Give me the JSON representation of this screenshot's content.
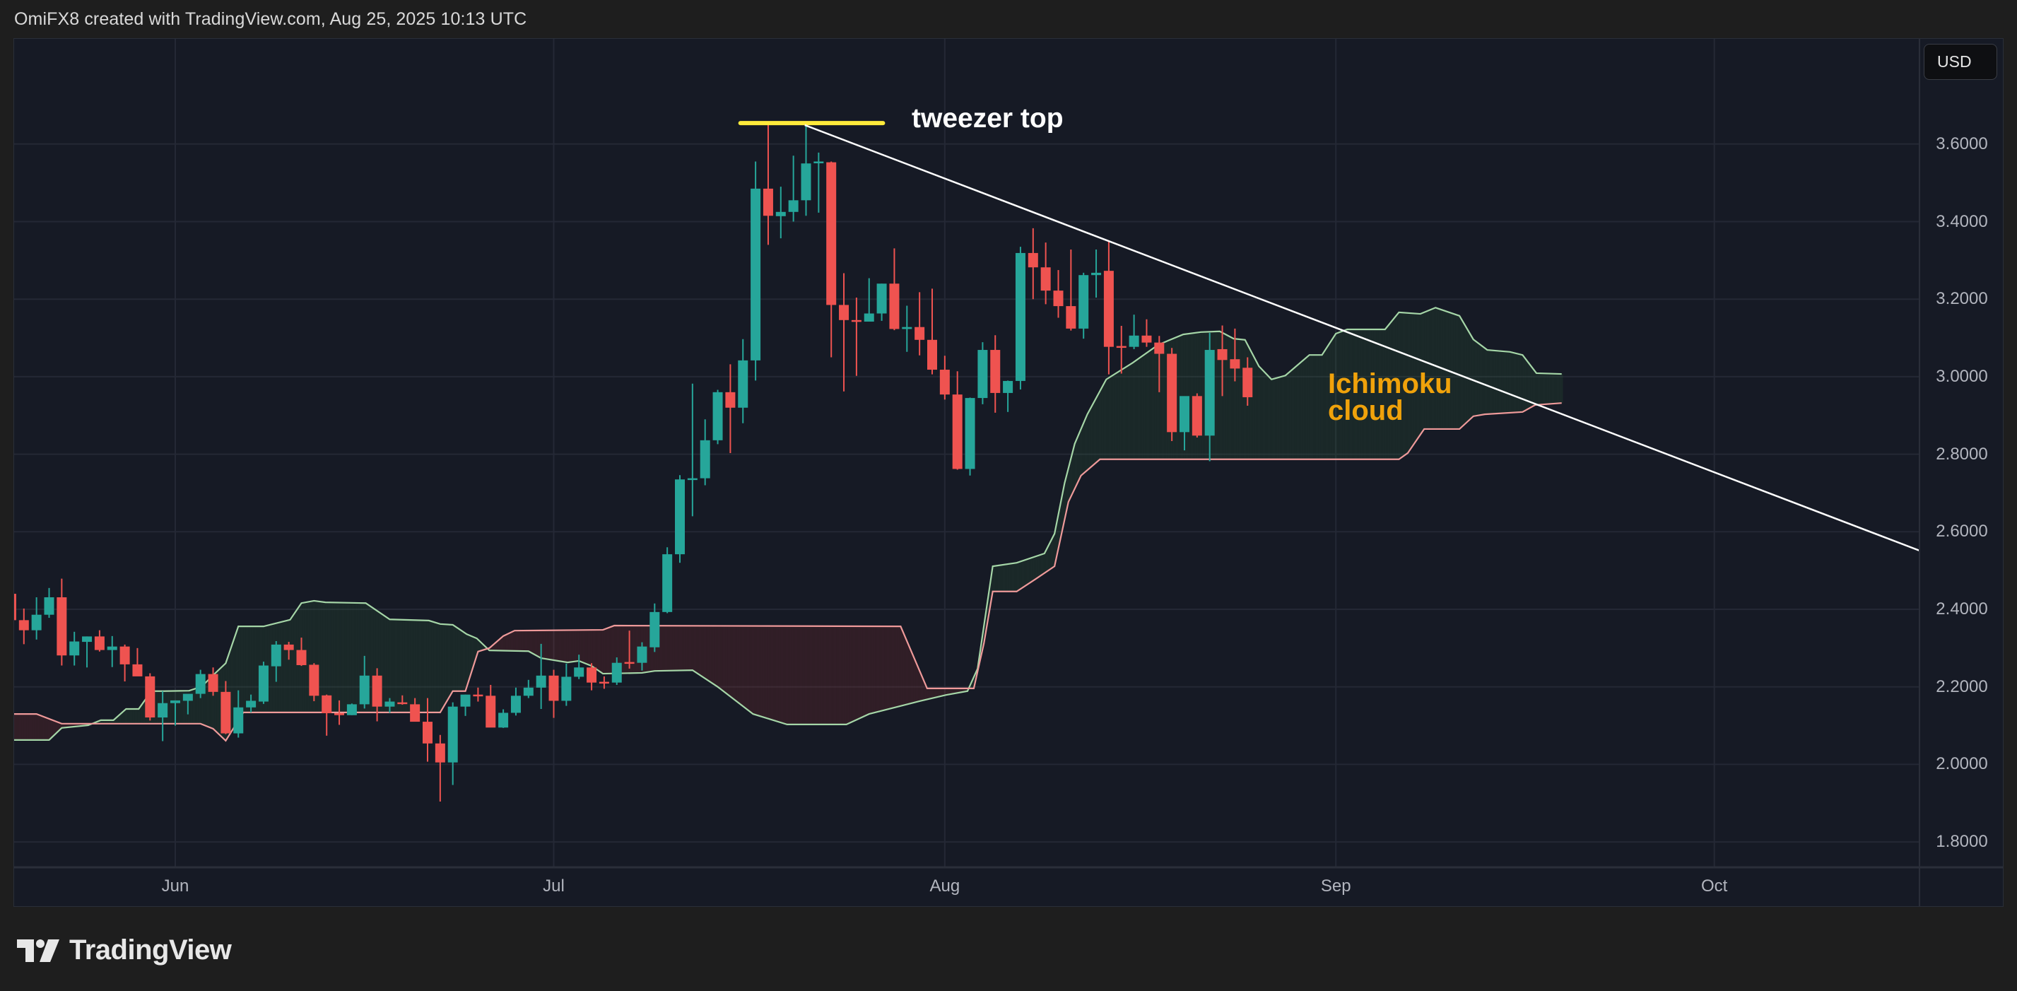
{
  "header": {
    "attribution": "OmiFX8 created with TradingView.com, Aug 25, 2025 10:13 UTC"
  },
  "currency_button": {
    "label": "USD"
  },
  "footer": {
    "brand": "TradingView",
    "logo_icon": "tradingview-logo-icon"
  },
  "colors": {
    "background": "#1e1e1e",
    "chart_bg": "#161a25",
    "grid": "#242835",
    "up_candle": "#26a69a",
    "down_candle": "#ef5350",
    "senkou_a": "#a5d6a7",
    "senkou_b": "#ef9a9a",
    "cloud_bull_fill": "rgba(67,160,71,0.12)",
    "cloud_bear_fill": "rgba(244,67,54,0.12)",
    "trendline": "#ffffff",
    "tweezer_line": "#ffeb3b",
    "annotation_cloud": "#f0a20b"
  },
  "annotations": {
    "tweezer_top": "tweezer top",
    "ichimoku_line1": "Ichimoku",
    "ichimoku_line2": "cloud"
  },
  "chart_data": {
    "type": "candlestick",
    "title": "",
    "currency": "USD",
    "xlabel": "",
    "ylabel": "",
    "ylim": [
      1.72,
      3.8
    ],
    "grid": true,
    "y_ticks": [
      "3.6000",
      "3.4000",
      "3.2000",
      "3.0000",
      "2.8000",
      "2.6000",
      "2.4000",
      "2.2000",
      "2.0000",
      "1.8000"
    ],
    "x_ticks": [
      {
        "label": "Jun",
        "day": 0
      },
      {
        "label": "Jul",
        "day": 30
      },
      {
        "label": "Aug",
        "day": 61
      },
      {
        "label": "Sep",
        "day": 92
      },
      {
        "label": "Oct",
        "day": 122
      }
    ],
    "day_zero": "Jun 1",
    "candles_ohlc": [
      {
        "d": -13,
        "o": 2.44,
        "h": 2.45,
        "l": 2.38,
        "c": 2.372
      },
      {
        "d": -12,
        "o": 2.372,
        "h": 2.402,
        "l": 2.31,
        "c": 2.346
      },
      {
        "d": -11,
        "o": 2.346,
        "h": 2.431,
        "l": 2.322,
        "c": 2.386
      },
      {
        "d": -10,
        "o": 2.386,
        "h": 2.455,
        "l": 2.378,
        "c": 2.431
      },
      {
        "d": -9,
        "o": 2.431,
        "h": 2.479,
        "l": 2.255,
        "c": 2.281
      },
      {
        "d": -8,
        "o": 2.281,
        "h": 2.342,
        "l": 2.255,
        "c": 2.317
      },
      {
        "d": -7,
        "o": 2.316,
        "h": 2.33,
        "l": 2.25,
        "c": 2.33
      },
      {
        "d": -6,
        "o": 2.33,
        "h": 2.346,
        "l": 2.291,
        "c": 2.295
      },
      {
        "d": -5,
        "o": 2.295,
        "h": 2.331,
        "l": 2.251,
        "c": 2.304
      },
      {
        "d": -4,
        "o": 2.304,
        "h": 2.309,
        "l": 2.214,
        "c": 2.258
      },
      {
        "d": -3,
        "o": 2.258,
        "h": 2.3,
        "l": 2.23,
        "c": 2.227
      },
      {
        "d": -2,
        "o": 2.227,
        "h": 2.235,
        "l": 2.113,
        "c": 2.121
      },
      {
        "d": -1,
        "o": 2.121,
        "h": 2.189,
        "l": 2.06,
        "c": 2.158
      },
      {
        "d": 0,
        "o": 2.158,
        "h": 2.165,
        "l": 2.1,
        "c": 2.165
      },
      {
        "d": 1,
        "o": 2.164,
        "h": 2.171,
        "l": 2.129,
        "c": 2.182
      },
      {
        "d": 2,
        "o": 2.182,
        "h": 2.244,
        "l": 2.171,
        "c": 2.233
      },
      {
        "d": 3,
        "o": 2.233,
        "h": 2.25,
        "l": 2.177,
        "c": 2.187
      },
      {
        "d": 4,
        "o": 2.187,
        "h": 2.215,
        "l": 2.078,
        "c": 2.08
      },
      {
        "d": 5,
        "o": 2.08,
        "h": 2.191,
        "l": 2.069,
        "c": 2.147
      },
      {
        "d": 6,
        "o": 2.147,
        "h": 2.18,
        "l": 2.134,
        "c": 2.164
      },
      {
        "d": 7,
        "o": 2.162,
        "h": 2.265,
        "l": 2.156,
        "c": 2.255
      },
      {
        "d": 8,
        "o": 2.253,
        "h": 2.318,
        "l": 2.213,
        "c": 2.309
      },
      {
        "d": 9,
        "o": 2.309,
        "h": 2.316,
        "l": 2.27,
        "c": 2.295
      },
      {
        "d": 10,
        "o": 2.295,
        "h": 2.327,
        "l": 2.254,
        "c": 2.256
      },
      {
        "d": 11,
        "o": 2.257,
        "h": 2.261,
        "l": 2.163,
        "c": 2.177
      },
      {
        "d": 12,
        "o": 2.178,
        "h": 2.18,
        "l": 2.074,
        "c": 2.132
      },
      {
        "d": 13,
        "o": 2.132,
        "h": 2.165,
        "l": 2.102,
        "c": 2.127
      },
      {
        "d": 14,
        "o": 2.127,
        "h": 2.157,
        "l": 2.127,
        "c": 2.155
      },
      {
        "d": 15,
        "o": 2.155,
        "h": 2.28,
        "l": 2.144,
        "c": 2.229
      },
      {
        "d": 16,
        "o": 2.229,
        "h": 2.248,
        "l": 2.111,
        "c": 2.149
      },
      {
        "d": 17,
        "o": 2.149,
        "h": 2.171,
        "l": 2.133,
        "c": 2.162
      },
      {
        "d": 18,
        "o": 2.16,
        "h": 2.178,
        "l": 2.154,
        "c": 2.158
      },
      {
        "d": 19,
        "o": 2.155,
        "h": 2.171,
        "l": 2.123,
        "c": 2.11
      },
      {
        "d": 20,
        "o": 2.11,
        "h": 2.171,
        "l": 2.007,
        "c": 2.054
      },
      {
        "d": 21,
        "o": 2.054,
        "h": 2.076,
        "l": 1.904,
        "c": 2.005
      },
      {
        "d": 22,
        "o": 2.005,
        "h": 2.16,
        "l": 1.947,
        "c": 2.149
      },
      {
        "d": 23,
        "o": 2.149,
        "h": 2.18,
        "l": 2.125,
        "c": 2.18
      },
      {
        "d": 24,
        "o": 2.18,
        "h": 2.198,
        "l": 2.162,
        "c": 2.177
      },
      {
        "d": 25,
        "o": 2.177,
        "h": 2.205,
        "l": 2.122,
        "c": 2.095
      },
      {
        "d": 26,
        "o": 2.095,
        "h": 2.142,
        "l": 2.094,
        "c": 2.133
      },
      {
        "d": 27,
        "o": 2.133,
        "h": 2.198,
        "l": 2.126,
        "c": 2.177
      },
      {
        "d": 28,
        "o": 2.177,
        "h": 2.218,
        "l": 2.171,
        "c": 2.198
      },
      {
        "d": 29,
        "o": 2.198,
        "h": 2.311,
        "l": 2.143,
        "c": 2.229
      },
      {
        "d": 30,
        "o": 2.229,
        "h": 2.244,
        "l": 2.12,
        "c": 2.164
      },
      {
        "d": 31,
        "o": 2.164,
        "h": 2.26,
        "l": 2.151,
        "c": 2.226
      },
      {
        "d": 32,
        "o": 2.226,
        "h": 2.283,
        "l": 2.22,
        "c": 2.25
      },
      {
        "d": 33,
        "o": 2.25,
        "h": 2.261,
        "l": 2.191,
        "c": 2.211
      },
      {
        "d": 34,
        "o": 2.213,
        "h": 2.227,
        "l": 2.195,
        "c": 2.211
      },
      {
        "d": 35,
        "o": 2.211,
        "h": 2.276,
        "l": 2.205,
        "c": 2.262
      },
      {
        "d": 36,
        "o": 2.264,
        "h": 2.345,
        "l": 2.247,
        "c": 2.262
      },
      {
        "d": 37,
        "o": 2.262,
        "h": 2.315,
        "l": 2.242,
        "c": 2.304
      },
      {
        "d": 38,
        "o": 2.302,
        "h": 2.415,
        "l": 2.29,
        "c": 2.393
      },
      {
        "d": 39,
        "o": 2.393,
        "h": 2.56,
        "l": 2.39,
        "c": 2.542
      },
      {
        "d": 40,
        "o": 2.542,
        "h": 2.746,
        "l": 2.52,
        "c": 2.735
      },
      {
        "d": 41,
        "o": 2.735,
        "h": 2.982,
        "l": 2.64,
        "c": 2.738
      },
      {
        "d": 42,
        "o": 2.738,
        "h": 2.89,
        "l": 2.72,
        "c": 2.836
      },
      {
        "d": 43,
        "o": 2.836,
        "h": 2.966,
        "l": 2.826,
        "c": 2.96
      },
      {
        "d": 44,
        "o": 2.96,
        "h": 3.032,
        "l": 2.803,
        "c": 2.92
      },
      {
        "d": 45,
        "o": 2.92,
        "h": 3.097,
        "l": 2.88,
        "c": 3.042
      },
      {
        "d": 46,
        "o": 3.042,
        "h": 3.555,
        "l": 2.99,
        "c": 3.485
      },
      {
        "d": 47,
        "o": 3.485,
        "h": 3.655,
        "l": 3.34,
        "c": 3.415
      },
      {
        "d": 48,
        "o": 3.414,
        "h": 3.49,
        "l": 3.357,
        "c": 3.425
      },
      {
        "d": 49,
        "o": 3.425,
        "h": 3.57,
        "l": 3.4,
        "c": 3.455
      },
      {
        "d": 50,
        "o": 3.455,
        "h": 3.652,
        "l": 3.415,
        "c": 3.55
      },
      {
        "d": 51,
        "o": 3.552,
        "h": 3.578,
        "l": 3.423,
        "c": 3.555
      },
      {
        "d": 52,
        "o": 3.553,
        "h": 3.555,
        "l": 3.05,
        "c": 3.185
      },
      {
        "d": 53,
        "o": 3.185,
        "h": 3.267,
        "l": 2.962,
        "c": 3.146
      },
      {
        "d": 54,
        "o": 3.146,
        "h": 3.204,
        "l": 3.002,
        "c": 3.142
      },
      {
        "d": 55,
        "o": 3.142,
        "h": 3.254,
        "l": 3.142,
        "c": 3.163
      },
      {
        "d": 56,
        "o": 3.163,
        "h": 3.24,
        "l": 3.144,
        "c": 3.24
      },
      {
        "d": 57,
        "o": 3.24,
        "h": 3.331,
        "l": 3.12,
        "c": 3.123
      },
      {
        "d": 58,
        "o": 3.123,
        "h": 3.183,
        "l": 3.064,
        "c": 3.128
      },
      {
        "d": 59,
        "o": 3.128,
        "h": 3.218,
        "l": 3.055,
        "c": 3.095
      },
      {
        "d": 60,
        "o": 3.095,
        "h": 3.227,
        "l": 3.006,
        "c": 3.018
      },
      {
        "d": 61,
        "o": 3.018,
        "h": 3.054,
        "l": 2.941,
        "c": 2.954
      },
      {
        "d": 62,
        "o": 2.954,
        "h": 3.014,
        "l": 2.76,
        "c": 2.762
      },
      {
        "d": 63,
        "o": 2.762,
        "h": 2.946,
        "l": 2.745,
        "c": 2.945
      },
      {
        "d": 64,
        "o": 2.945,
        "h": 3.089,
        "l": 2.929,
        "c": 3.069
      },
      {
        "d": 65,
        "o": 3.069,
        "h": 3.107,
        "l": 2.907,
        "c": 2.958
      },
      {
        "d": 66,
        "o": 2.958,
        "h": 2.99,
        "l": 2.909,
        "c": 2.989
      },
      {
        "d": 67,
        "o": 2.989,
        "h": 3.335,
        "l": 2.967,
        "c": 3.319
      },
      {
        "d": 68,
        "o": 3.319,
        "h": 3.383,
        "l": 3.2,
        "c": 3.282
      },
      {
        "d": 69,
        "o": 3.282,
        "h": 3.346,
        "l": 3.187,
        "c": 3.222
      },
      {
        "d": 70,
        "o": 3.222,
        "h": 3.275,
        "l": 3.152,
        "c": 3.182
      },
      {
        "d": 71,
        "o": 3.182,
        "h": 3.328,
        "l": 3.119,
        "c": 3.124
      },
      {
        "d": 72,
        "o": 3.124,
        "h": 3.268,
        "l": 3.098,
        "c": 3.262
      },
      {
        "d": 73,
        "o": 3.262,
        "h": 3.328,
        "l": 3.204,
        "c": 3.268
      },
      {
        "d": 74,
        "o": 3.273,
        "h": 3.35,
        "l": 3.006,
        "c": 3.077
      },
      {
        "d": 75,
        "o": 3.079,
        "h": 3.131,
        "l": 3.008,
        "c": 3.077
      },
      {
        "d": 76,
        "o": 3.077,
        "h": 3.16,
        "l": 3.071,
        "c": 3.106
      },
      {
        "d": 77,
        "o": 3.106,
        "h": 3.148,
        "l": 3.077,
        "c": 3.088
      },
      {
        "d": 78,
        "o": 3.088,
        "h": 3.105,
        "l": 2.96,
        "c": 3.059
      },
      {
        "d": 79,
        "o": 3.059,
        "h": 3.074,
        "l": 2.834,
        "c": 2.857
      },
      {
        "d": 80,
        "o": 2.857,
        "h": 2.94,
        "l": 2.81,
        "c": 2.95
      },
      {
        "d": 81,
        "o": 2.95,
        "h": 2.957,
        "l": 2.843,
        "c": 2.848
      },
      {
        "d": 82,
        "o": 2.848,
        "h": 3.113,
        "l": 2.782,
        "c": 3.069
      },
      {
        "d": 83,
        "o": 3.071,
        "h": 3.132,
        "l": 2.95,
        "c": 3.043
      },
      {
        "d": 84,
        "o": 3.045,
        "h": 3.124,
        "l": 2.988,
        "c": 3.021
      },
      {
        "d": 85,
        "o": 3.023,
        "h": 3.05,
        "l": 2.925,
        "c": 2.947
      }
    ],
    "ichimoku": {
      "senkou_span_a": [
        [
          -12.8,
          2.063
        ],
        [
          -10.0,
          2.063
        ],
        [
          -9.0,
          2.094
        ],
        [
          -6.9,
          2.101
        ],
        [
          -5.9,
          2.114
        ],
        [
          -4.9,
          2.114
        ],
        [
          -3.9,
          2.143
        ],
        [
          -2.9,
          2.143
        ],
        [
          -1.9,
          2.189
        ],
        [
          -0.9,
          2.189
        ],
        [
          1.1,
          2.19
        ],
        [
          2.1,
          2.201
        ],
        [
          3.0,
          2.23
        ],
        [
          4.0,
          2.261
        ],
        [
          5.0,
          2.356
        ],
        [
          7.0,
          2.356
        ],
        [
          9.1,
          2.373
        ],
        [
          10.0,
          2.416
        ],
        [
          11.0,
          2.422
        ],
        [
          11.9,
          2.418
        ],
        [
          15.1,
          2.416
        ],
        [
          17.0,
          2.374
        ],
        [
          20.1,
          2.371
        ],
        [
          21.0,
          2.362
        ],
        [
          22.0,
          2.36
        ],
        [
          23.1,
          2.336
        ],
        [
          23.9,
          2.325
        ],
        [
          24.9,
          2.294
        ],
        [
          28.0,
          2.292
        ],
        [
          29.0,
          2.274
        ],
        [
          31.1,
          2.263
        ],
        [
          32.0,
          2.267
        ],
        [
          33.0,
          2.254
        ],
        [
          33.9,
          2.234
        ],
        [
          37.0,
          2.236
        ],
        [
          38.0,
          2.241
        ],
        [
          41.0,
          2.243
        ],
        [
          43.0,
          2.2
        ],
        [
          45.8,
          2.13
        ],
        [
          48.5,
          2.103
        ],
        [
          53.2,
          2.103
        ],
        [
          55.0,
          2.13
        ],
        [
          59.0,
          2.163
        ],
        [
          61.1,
          2.179
        ],
        [
          62.8,
          2.189
        ],
        [
          63.6,
          2.247
        ],
        [
          64.8,
          2.511
        ],
        [
          66.7,
          2.52
        ],
        [
          68.9,
          2.544
        ],
        [
          69.7,
          2.595
        ],
        [
          70.5,
          2.726
        ],
        [
          71.3,
          2.827
        ],
        [
          72.3,
          2.903
        ],
        [
          73.8,
          2.993
        ],
        [
          75.9,
          3.036
        ],
        [
          77.9,
          3.082
        ],
        [
          79.9,
          3.109
        ],
        [
          81.3,
          3.115
        ],
        [
          82.8,
          3.117
        ],
        [
          83.9,
          3.098
        ],
        [
          84.8,
          3.095
        ],
        [
          85.9,
          3.027
        ],
        [
          86.9,
          2.993
        ],
        [
          88.0,
          3.003
        ],
        [
          89.9,
          3.056
        ],
        [
          90.9,
          3.056
        ],
        [
          92.0,
          3.111
        ],
        [
          92.9,
          3.122
        ],
        [
          95.9,
          3.122
        ],
        [
          97.0,
          3.166
        ],
        [
          98.7,
          3.162
        ],
        [
          99.9,
          3.178
        ],
        [
          101.8,
          3.157
        ],
        [
          102.9,
          3.096
        ],
        [
          104.0,
          3.069
        ],
        [
          105.8,
          3.064
        ],
        [
          106.8,
          3.056
        ],
        [
          107.9,
          3.009
        ],
        [
          109.9,
          3.007
        ]
      ],
      "senkou_span_b": [
        [
          -12.8,
          2.13
        ],
        [
          -11.0,
          2.13
        ],
        [
          -9.0,
          2.105
        ],
        [
          2.0,
          2.105
        ],
        [
          3.0,
          2.092
        ],
        [
          4.0,
          2.061
        ],
        [
          5.4,
          2.134
        ],
        [
          21.0,
          2.134
        ],
        [
          22.0,
          2.189
        ],
        [
          23.0,
          2.189
        ],
        [
          24.0,
          2.291
        ],
        [
          24.9,
          2.3
        ],
        [
          26.0,
          2.331
        ],
        [
          26.9,
          2.345
        ],
        [
          33.9,
          2.347
        ],
        [
          34.8,
          2.358
        ],
        [
          57.5,
          2.356
        ],
        [
          59.6,
          2.196
        ],
        [
          63.3,
          2.196
        ],
        [
          64.1,
          2.312
        ],
        [
          64.8,
          2.446
        ],
        [
          66.7,
          2.446
        ],
        [
          68.2,
          2.478
        ],
        [
          69.7,
          2.511
        ],
        [
          70.8,
          2.677
        ],
        [
          71.8,
          2.745
        ],
        [
          73.3,
          2.787
        ],
        [
          97.0,
          2.787
        ],
        [
          97.7,
          2.803
        ],
        [
          99.0,
          2.865
        ],
        [
          101.8,
          2.865
        ],
        [
          102.9,
          2.898
        ],
        [
          103.8,
          2.903
        ],
        [
          106.8,
          2.909
        ],
        [
          107.8,
          2.927
        ],
        [
          109.9,
          2.932
        ]
      ]
    },
    "drawings": {
      "tweezer_top_level": {
        "price": 3.654,
        "from_day": 44.8,
        "to_day": 56.1
      },
      "downtrend_line": {
        "from": [
          49.9,
          3.649
        ],
        "to": [
          138.3,
          2.551
        ]
      }
    },
    "annotations": [
      "tweezer top",
      "Ichimoku cloud"
    ]
  }
}
